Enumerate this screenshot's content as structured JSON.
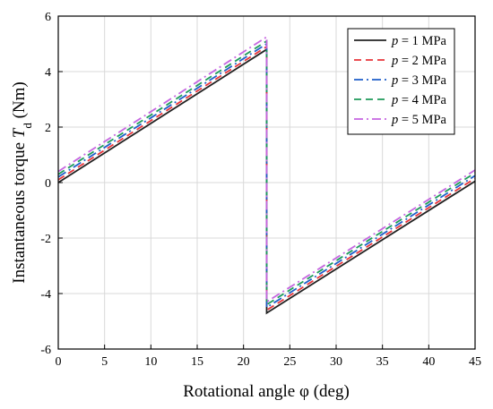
{
  "chart_data": {
    "type": "line",
    "title": "",
    "xlabel": "Rotational angle φ (deg)",
    "ylabel": "Instantaneous torque T_d (Nm)",
    "xlim": [
      0,
      45
    ],
    "ylim": [
      -6,
      6
    ],
    "xticks": [
      "0",
      "5",
      "10",
      "15",
      "20",
      "25",
      "30",
      "35",
      "40",
      "45"
    ],
    "yticks": [
      "-6",
      "-4",
      "-2",
      "0",
      "2",
      "4",
      "6"
    ],
    "grid": true,
    "legend_position": "top-right",
    "series": [
      {
        "name": "p = 1 MPa",
        "color": "#222222",
        "dash": "solid",
        "points": [
          [
            0,
            0.0
          ],
          [
            22.5,
            4.8
          ],
          [
            22.5,
            -4.7
          ],
          [
            45,
            0.05
          ]
        ]
      },
      {
        "name": "p = 2 MPa",
        "color": "#e8343a",
        "dash": "dash",
        "points": [
          [
            0,
            0.1
          ],
          [
            22.5,
            4.9
          ],
          [
            22.5,
            -4.6
          ],
          [
            45,
            0.15
          ]
        ]
      },
      {
        "name": "p = 3 MPa",
        "color": "#1f5fc9",
        "dash": "dashdot",
        "points": [
          [
            0,
            0.2
          ],
          [
            22.5,
            5.0
          ],
          [
            22.5,
            -4.5
          ],
          [
            45,
            0.25
          ]
        ]
      },
      {
        "name": "p = 4 MPa",
        "color": "#1e9a5a",
        "dash": "dash",
        "points": [
          [
            0,
            0.3
          ],
          [
            22.5,
            5.1
          ],
          [
            22.5,
            -4.4
          ],
          [
            45,
            0.35
          ]
        ]
      },
      {
        "name": "p = 5 MPa",
        "color": "#c666e0",
        "dash": "dashdot",
        "points": [
          [
            0,
            0.4
          ],
          [
            22.5,
            5.25
          ],
          [
            22.5,
            -4.3
          ],
          [
            45,
            0.45
          ]
        ]
      }
    ]
  }
}
